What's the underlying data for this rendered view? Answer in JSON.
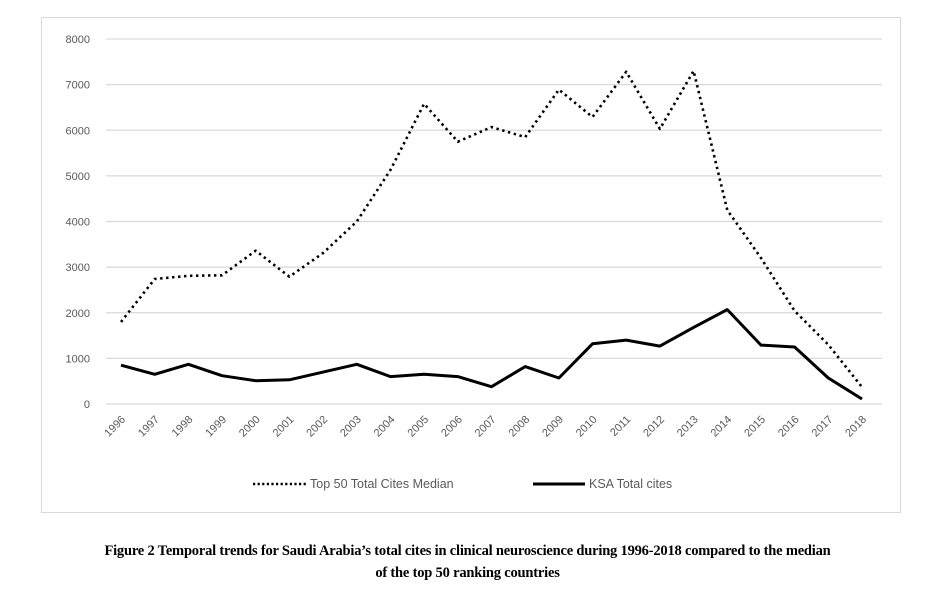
{
  "figure": {
    "caption_line1": "Figure 2 Temporal trends for Saudi Arabia’s total cites in clinical neuroscience during 1996-2018 compared to the median",
    "caption_line2": "of the top 50 ranking countries"
  },
  "chart_data": {
    "type": "line",
    "title": "",
    "xlabel": "",
    "ylabel": "",
    "ylim": [
      0,
      8000
    ],
    "yticks": [
      "0",
      "1000",
      "2000",
      "3000",
      "4000",
      "5000",
      "6000",
      "7000",
      "8000"
    ],
    "ytick_values": [
      0,
      1000,
      2000,
      3000,
      4000,
      5000,
      6000,
      7000,
      8000
    ],
    "grid": true,
    "legend_position": "bottom",
    "categories": [
      "1996",
      "1997",
      "1998",
      "1999",
      "2000",
      "2001",
      "2002",
      "2003",
      "2004",
      "2005",
      "2006",
      "2007",
      "2008",
      "2009",
      "2010",
      "2011",
      "2012",
      "2013",
      "2014",
      "2015",
      "2016",
      "2017",
      "2018"
    ],
    "series": [
      {
        "name": "Top 50 Total Cites Median",
        "style": "dotted",
        "color": "#000000",
        "values": [
          1800,
          2740,
          2810,
          2820,
          3360,
          2790,
          3310,
          4000,
          5130,
          6580,
          5750,
          6070,
          5850,
          6890,
          6290,
          7280,
          6030,
          7300,
          4250,
          3200,
          2040,
          1300,
          370
        ]
      },
      {
        "name": "KSA Total cites",
        "style": "solid",
        "color": "#000000",
        "values": [
          850,
          650,
          870,
          620,
          510,
          530,
          700,
          870,
          600,
          650,
          600,
          380,
          820,
          570,
          1320,
          1400,
          1270,
          1680,
          2070,
          1290,
          1250,
          570,
          110
        ]
      }
    ]
  }
}
